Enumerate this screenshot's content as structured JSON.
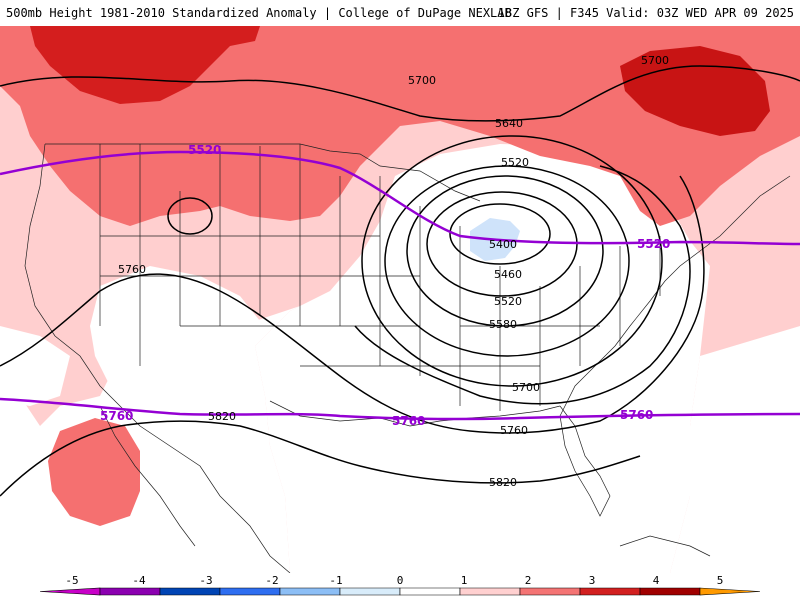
{
  "header": {
    "left_title": "500mb Height 1981-2010 Standardized Anomaly | College of DuPage NEXLAB",
    "right_title": "18Z GFS | F345 Valid: 03Z WED APR 09 2025"
  },
  "contours": {
    "black_labels": [
      "5700",
      "5640",
      "5520",
      "5400",
      "5460",
      "5520",
      "5580",
      "5700",
      "5760",
      "5760",
      "5820",
      "5820",
      "5700"
    ],
    "purple_labels": [
      "5520",
      "5520",
      "5760",
      "5760",
      "5760"
    ],
    "purple_color": "#9400d3"
  },
  "colorbar": {
    "ticks": [
      "-5",
      "-4",
      "-3",
      "-2",
      "-1",
      "0",
      "1",
      "2",
      "3",
      "4",
      "5"
    ],
    "colors": [
      "#c800c8",
      "#8b00b0",
      "#0044b4",
      "#2e6ef0",
      "#8cbef5",
      "#d8ecfa",
      "#ffffff",
      "#ffd0d0",
      "#f47474",
      "#d22020",
      "#a00000",
      "#ff9a00"
    ]
  }
}
